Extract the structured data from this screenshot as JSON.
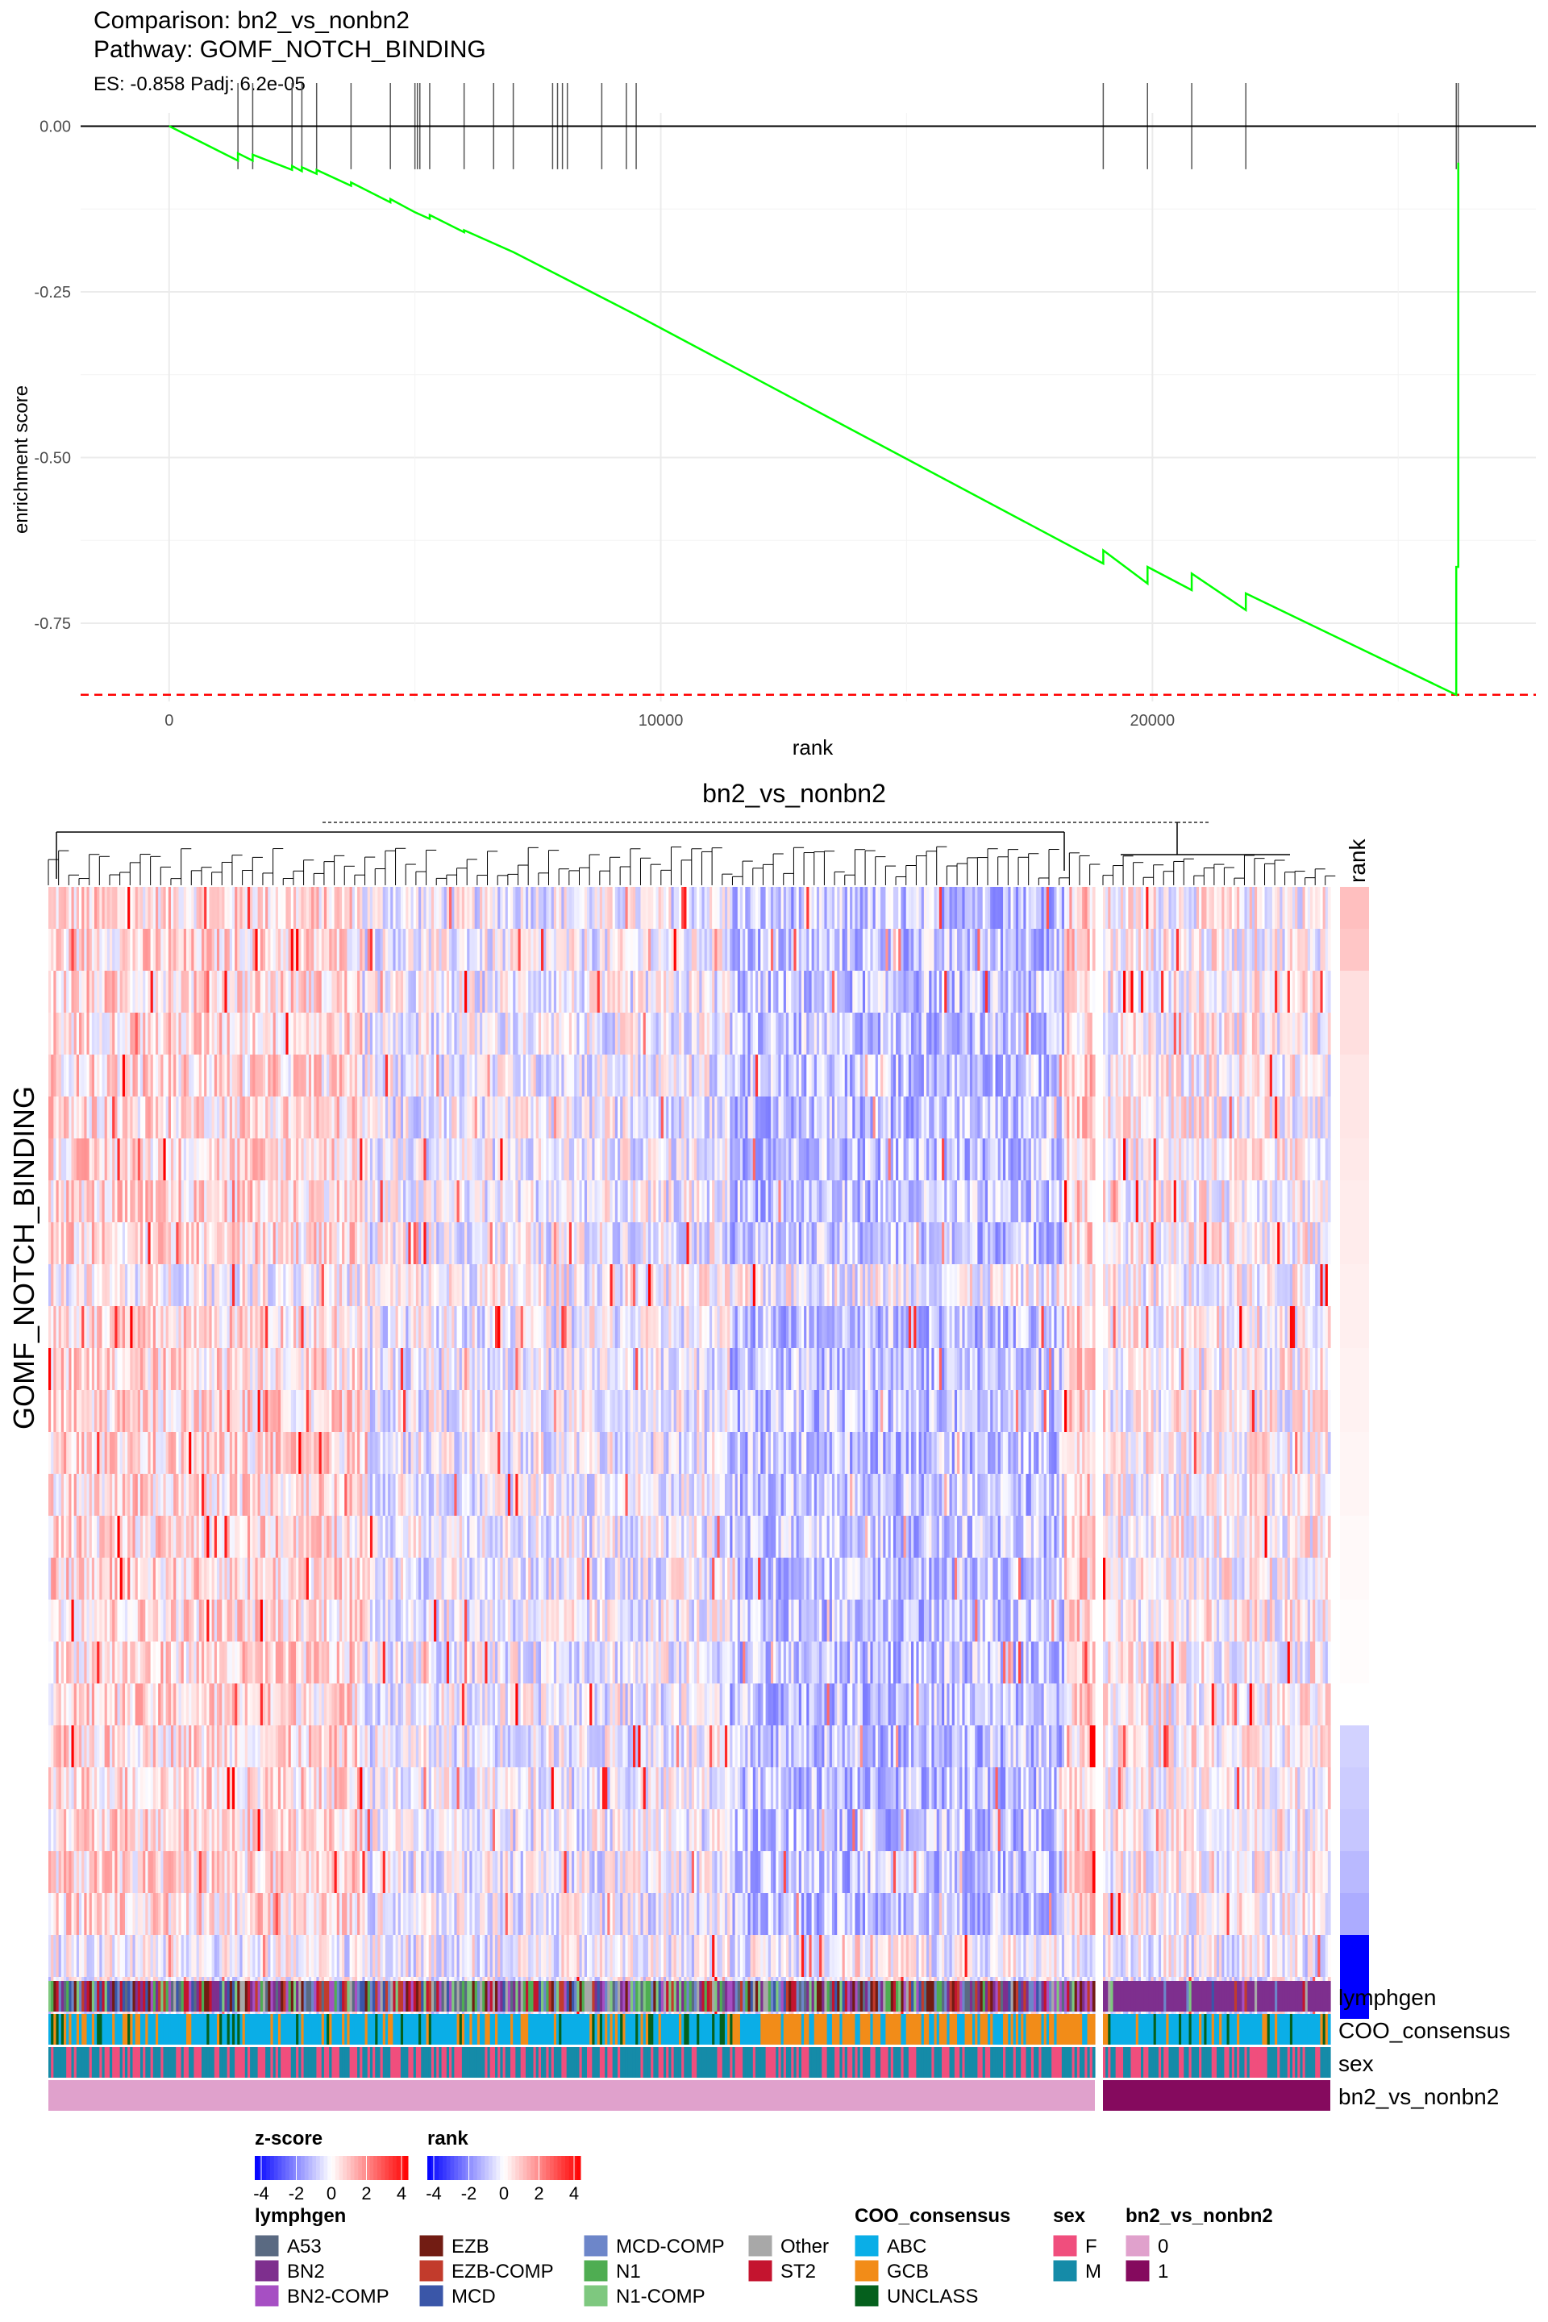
{
  "header": {
    "comparison": "Comparison: bn2_vs_nonbn2",
    "pathway": "Pathway: GOMF_NOTCH_BINDING",
    "stats": "ES: -0.858 Padj: 6.2e-05"
  },
  "chart_data": [
    {
      "type": "line",
      "title": "Comparison: bn2_vs_nonbn2",
      "subtitle": "ES: -0.858 Padj: 6.2e-05",
      "xlabel": "rank",
      "ylabel": "enrichment score",
      "xlim": [
        -1800,
        27800
      ],
      "ylim": [
        -0.868,
        0.02
      ],
      "x_ticks": [
        0,
        10000,
        20000
      ],
      "y_ticks": [
        0.0,
        -0.25,
        -0.5,
        -0.75
      ],
      "y_tick_labels": [
        "0.00",
        "-0.25",
        "-0.50",
        "-0.75"
      ],
      "es_line": -0.858,
      "n_ranks": 26200,
      "hit_ranks": [
        1400,
        1700,
        2500,
        2700,
        3000,
        3700,
        4500,
        5000,
        5050,
        5100,
        5300,
        6000,
        6600,
        7000,
        7800,
        7900,
        8000,
        8100,
        8800,
        9300,
        9500,
        19000,
        19900,
        20800,
        21900,
        26180,
        26220
      ],
      "series": [
        {
          "x": [
            0,
            1400,
            1400,
            1700,
            1700,
            2500,
            2500,
            2700,
            2700,
            3000,
            3000,
            3700,
            3700,
            4500,
            4500,
            5000,
            5000,
            5300,
            5300,
            6000,
            6000,
            7000,
            7000,
            9500,
            9500,
            19000,
            19000,
            19900,
            19900,
            20800,
            20800,
            21900,
            21900,
            26180,
            26180,
            26220,
            26220
          ],
          "y": [
            0.0,
            -0.052,
            -0.041,
            -0.052,
            -0.043,
            -0.066,
            -0.06,
            -0.068,
            -0.062,
            -0.072,
            -0.066,
            -0.09,
            -0.085,
            -0.115,
            -0.11,
            -0.13,
            -0.13,
            -0.14,
            -0.134,
            -0.16,
            -0.157,
            -0.19,
            -0.19,
            -0.285,
            -0.285,
            -0.66,
            -0.64,
            -0.69,
            -0.665,
            -0.7,
            -0.675,
            -0.73,
            -0.705,
            -0.858,
            -0.665,
            -0.665,
            -0.055
          ]
        }
      ]
    },
    {
      "type": "heatmap",
      "title": "bn2_vs_nonbn2",
      "row_title": "GOMF_NOTCH_BINDING",
      "rank_label": "rank",
      "n_genes": 27,
      "group_sizes": {
        "nonbn2": 410,
        "bn2": 90
      },
      "gene_rank_z": [
        1.0,
        0.9,
        0.5,
        0.5,
        0.4,
        0.4,
        0.35,
        0.3,
        0.3,
        0.25,
        0.25,
        0.2,
        0.2,
        0.15,
        0.15,
        0.1,
        0.1,
        0.05,
        0.05,
        0.0,
        -0.7,
        -0.8,
        -0.9,
        -1.1,
        -1.3,
        -4.5,
        -4.5
      ],
      "annotation_rows": [
        "lymphgen",
        "COO_consensus",
        "sex",
        "bn2_vs_nonbn2"
      ],
      "legend": {
        "zscore_title": "z-score",
        "rank_title": "rank",
        "scale_ticks": [
          "-4",
          "-2",
          "0",
          "2",
          "4"
        ],
        "lymphgen_title": "lymphgen",
        "lymphgen": [
          {
            "label": "A53",
            "color": "#5a6a82"
          },
          {
            "label": "BN2",
            "color": "#7e2f8e"
          },
          {
            "label": "BN2-COMP",
            "color": "#a64fc3"
          },
          {
            "label": "EZB",
            "color": "#721c13"
          },
          {
            "label": "EZB-COMP",
            "color": "#c23b2c"
          },
          {
            "label": "MCD",
            "color": "#3a56a8"
          },
          {
            "label": "MCD-COMP",
            "color": "#6d86c9"
          },
          {
            "label": "N1",
            "color": "#4fad52"
          },
          {
            "label": "N1-COMP",
            "color": "#7ec87f"
          },
          {
            "label": "Other",
            "color": "#a8a8a8"
          },
          {
            "label": "ST2",
            "color": "#c4142f"
          }
        ],
        "coo_title": "COO_consensus",
        "coo": [
          {
            "label": "ABC",
            "color": "#0aaee7"
          },
          {
            "label": "GCB",
            "color": "#f28c18"
          },
          {
            "label": "UNCLASS",
            "color": "#05601d"
          }
        ],
        "sex_title": "sex",
        "sex": [
          {
            "label": "F",
            "color": "#f04e7d"
          },
          {
            "label": "M",
            "color": "#158ba8"
          }
        ],
        "group_title": "bn2_vs_nonbn2",
        "group": [
          {
            "label": "0",
            "color": "#e0a1cc"
          },
          {
            "label": "1",
            "color": "#850a5e"
          }
        ]
      }
    }
  ]
}
